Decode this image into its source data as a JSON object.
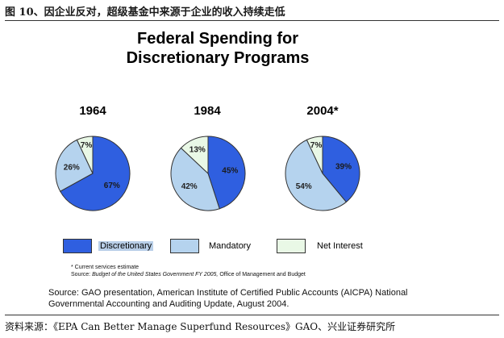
{
  "figure_caption": "图 10、因企业反对，超级基金中来源于企业的收入持续走低",
  "chart_data": {
    "type": "pie",
    "title_line1": "Federal Spending for",
    "title_line2": "Discretionary Programs",
    "categories": [
      "Discretionary",
      "Mandatory",
      "Net Interest"
    ],
    "colors": [
      "#2f5fe0",
      "#b5d3ee",
      "#e9f8e6"
    ],
    "pies": [
      {
        "label": "1964",
        "values": [
          67,
          26,
          7
        ],
        "labels": [
          "67%",
          "26%",
          "7%"
        ]
      },
      {
        "label": "1984",
        "values": [
          45,
          42,
          13
        ],
        "labels": [
          "45%",
          "42%",
          "13%"
        ]
      },
      {
        "label": "2004*",
        "values": [
          39,
          54,
          7
        ],
        "labels": [
          "39%",
          "54%",
          "7%"
        ]
      }
    ],
    "legend_position": "bottom"
  },
  "notes": {
    "footnote": "* Current services estimate",
    "source_prefix": "Source: ",
    "source_italic": "Budget of the United States Government FY 2005,",
    "source_suffix": " Office of Management and Budget"
  },
  "source_en_line1": "Source: GAO presentation, American Institute of Certified Public Accounts (AICPA) National",
  "source_en_line2": "Governmental Accounting and Auditing Update, August 2004.",
  "source_cn": "资料来源：《EPA Can Better Manage Superfund Resources》GAO、兴业证券研究所"
}
